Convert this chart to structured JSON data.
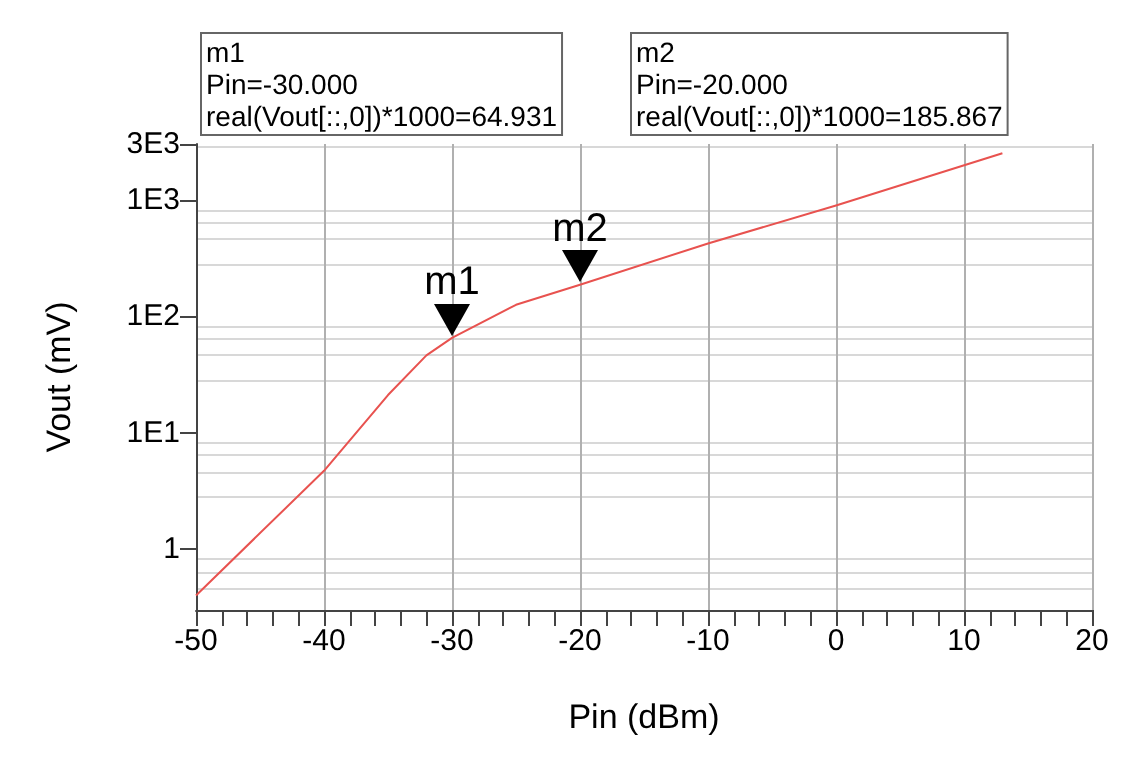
{
  "chart_data": {
    "type": "line",
    "xlabel": "Pin (dBm)",
    "ylabel": "Vout (mV)",
    "x": [
      -50,
      -40,
      -35,
      -32,
      -30,
      -25,
      -20,
      -10,
      0,
      13
    ],
    "series": [
      {
        "color": "#e8524f",
        "values": [
          0.4,
          4.7,
          21,
          46,
          64.931,
          125,
          185.867,
          420,
          890,
          2500
        ]
      }
    ],
    "xlim": [
      -50,
      20
    ],
    "xticks": [
      -50,
      -40,
      -30,
      -20,
      -10,
      0,
      10,
      20
    ],
    "ylim": [
      0.3,
      3000
    ],
    "yticks": [
      {
        "value": 1,
        "label": "1"
      },
      {
        "value": 10,
        "label": "1E1"
      },
      {
        "value": 100,
        "label": "1E2"
      },
      {
        "value": 1000,
        "label": "1E3"
      },
      {
        "value": 3000,
        "label": "3E3"
      }
    ],
    "log": "y",
    "grid": true,
    "marker": "none",
    "line_style": "solid",
    "annotations": [
      "m1\nPin=-30.000\nreal(Vout[::,0])*1000=64.931",
      "m2\nPin=-20.000\nreal(Vout[::,0])*1000=185.867",
      {
        "text": "m1",
        "x": -30,
        "y": 64.931
      },
      {
        "text": "m2",
        "x": -20,
        "y": 185.867
      }
    ]
  }
}
